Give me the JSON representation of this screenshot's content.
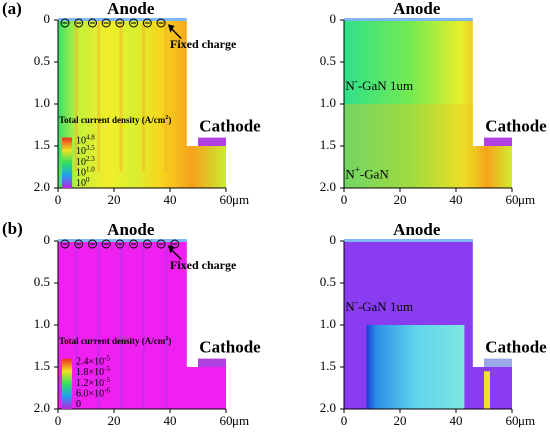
{
  "panel_labels": [
    "(a)",
    "(b)"
  ],
  "panels": [
    {
      "title": "Anode",
      "cathode": "Cathode",
      "annotation": "Fixed charge",
      "colorbar": {
        "title": "Total current density (A/cm",
        "title_sup": "2",
        "title_end": ")",
        "ticks": [
          {
            "text": "10",
            "sup": "4.8"
          },
          {
            "text": "10",
            "sup": "3.5"
          },
          {
            "text": "10",
            "sup": "2.3"
          },
          {
            "text": "10",
            "sup": "1.0"
          },
          {
            "text": "10",
            "sup": "0"
          }
        ]
      },
      "yticks": [
        "0",
        "0.5",
        "1.0",
        "1.5",
        "2.0"
      ],
      "xticks": [
        "0",
        "20",
        "40",
        "60"
      ],
      "xunit": "μm"
    },
    {
      "title": "Anode",
      "cathode": "Cathode",
      "layer_labels": [
        {
          "text": "N",
          "sup": "-",
          "rest": "-GaN 1um"
        },
        {
          "text": "N",
          "sup": "+",
          "rest": "-GaN"
        }
      ],
      "yticks": [
        "0",
        "0.5",
        "1.0",
        "1.5",
        "2.0"
      ],
      "xticks": [
        "0",
        "20",
        "40",
        "60"
      ],
      "xunit": "μm"
    },
    {
      "title": "Anode",
      "cathode": "Cathode",
      "annotation": "Fixed charge",
      "colorbar": {
        "title": "Total current density (A/cm",
        "title_sup": "2",
        "title_end": ")",
        "ticks": [
          {
            "text": "2.4×10",
            "sup": "-5"
          },
          {
            "text": "1.8×10",
            "sup": "-5"
          },
          {
            "text": "1.2×10",
            "sup": "-5"
          },
          {
            "text": "6.0×10",
            "sup": "-6"
          },
          {
            "text": "0"
          }
        ]
      },
      "yticks": [
        "0",
        "0.5",
        "1.0",
        "1.5",
        "2.0"
      ],
      "xticks": [
        "0",
        "20",
        "40",
        "60"
      ],
      "xunit": "μm"
    },
    {
      "title": "Anode",
      "cathode": "Cathode",
      "layer_labels": [
        {
          "text": "N",
          "sup": "-",
          "rest": "-GaN 1um"
        }
      ],
      "yticks": [
        "0",
        "0.5",
        "1.0",
        "1.5",
        "2.0"
      ],
      "xticks": [
        "0",
        "20",
        "40",
        "60"
      ],
      "xunit": "μm"
    }
  ]
}
